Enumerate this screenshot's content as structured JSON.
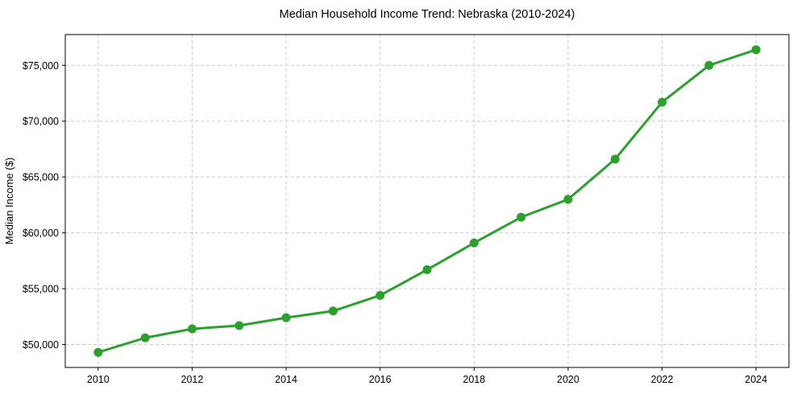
{
  "chart_data": {
    "type": "line",
    "title": "Median Household Income Trend: Nebraska (2010-2024)",
    "xlabel": "",
    "ylabel": "Median Income ($)",
    "x": [
      2010,
      2011,
      2012,
      2013,
      2014,
      2015,
      2016,
      2017,
      2018,
      2019,
      2020,
      2021,
      2022,
      2023,
      2024
    ],
    "values": [
      49300,
      50600,
      51400,
      51700,
      52400,
      53000,
      54400,
      56700,
      59100,
      61400,
      63000,
      66600,
      71700,
      75000,
      76400
    ],
    "xlim": [
      2009.3,
      2024.7
    ],
    "ylim": [
      47945,
      77755
    ],
    "xticks": [
      2010,
      2012,
      2014,
      2016,
      2018,
      2020,
      2022,
      2024
    ],
    "xtick_labels": [
      "2010",
      "2012",
      "2014",
      "2016",
      "2018",
      "2020",
      "2022",
      "2024"
    ],
    "yticks": [
      50000,
      55000,
      60000,
      65000,
      70000,
      75000
    ],
    "ytick_labels": [
      "$50,000",
      "$55,000",
      "$60,000",
      "$65,000",
      "$70,000",
      "$75,000"
    ],
    "grid": true,
    "grid_style": "dashed",
    "legend_position": "none",
    "colors": {
      "line": "#2ca02c",
      "marker": "#2ca02c",
      "grid": "#cccccc",
      "spine": "#000000",
      "background": "#ffffff"
    }
  }
}
